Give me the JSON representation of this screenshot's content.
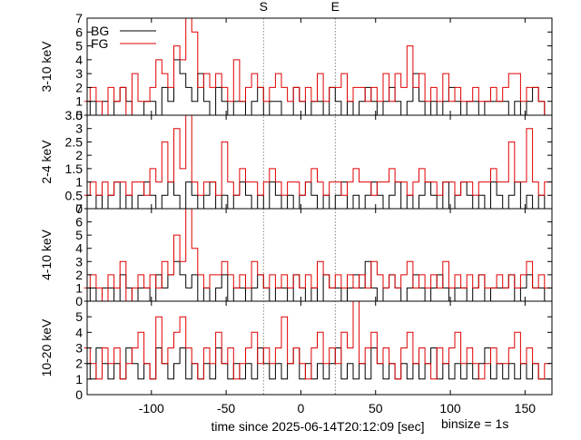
{
  "chart_data": {
    "type": "line",
    "xlabel": "time since 2025-06-14T20:12:09 [sec]",
    "binsize_label": "binsize = 1s",
    "xlim": [
      -143,
      168
    ],
    "xticks": [
      -100,
      -50,
      0,
      50,
      100,
      150
    ],
    "markers": [
      {
        "label": "S",
        "x": -25
      },
      {
        "label": "E",
        "x": 23
      }
    ],
    "legend": {
      "placement": "top-left",
      "entries": [
        {
          "label": "BG",
          "color": "#000000"
        },
        {
          "label": "FG",
          "color": "#e00000"
        }
      ]
    },
    "x": [
      -143,
      -139,
      -135,
      -131,
      -127,
      -123,
      -119,
      -115,
      -111,
      -107,
      -103,
      -99,
      -95,
      -91,
      -87,
      -83,
      -79,
      -75,
      -71,
      -67,
      -63,
      -59,
      -55,
      -51,
      -47,
      -43,
      -39,
      -35,
      -31,
      -27,
      -23,
      -19,
      -15,
      -11,
      -7,
      -3,
      1,
      5,
      9,
      13,
      17,
      21,
      25,
      29,
      33,
      37,
      41,
      45,
      49,
      53,
      57,
      61,
      65,
      69,
      73,
      77,
      81,
      85,
      89,
      93,
      97,
      101,
      105,
      109,
      113,
      117,
      121,
      125,
      129,
      133,
      137,
      141,
      145,
      149,
      153,
      157,
      161,
      165
    ],
    "panels": [
      {
        "ylabel": "3-10 keV",
        "ylim": [
          0,
          7
        ],
        "yticks": [
          0,
          1,
          2,
          3,
          4,
          5,
          6,
          7
        ],
        "series": [
          {
            "name": "BG",
            "color": "#000000",
            "values": [
              0,
              1,
              0,
              1,
              0,
              1,
              2,
              1,
              0,
              0,
              1,
              1,
              0,
              2,
              1,
              4,
              3,
              2,
              1,
              3,
              1,
              0,
              2,
              1,
              0,
              1,
              1,
              0,
              1,
              2,
              0,
              1,
              1,
              0,
              0,
              2,
              1,
              0,
              1,
              1,
              0,
              2,
              1,
              0,
              1,
              0,
              1,
              2,
              1,
              0,
              1,
              2,
              1,
              0,
              1,
              3,
              1,
              0,
              1,
              0,
              1,
              2,
              1,
              0,
              1,
              1,
              0,
              1,
              1,
              1,
              1,
              0,
              1,
              0,
              1,
              2,
              1,
              0
            ]
          },
          {
            "name": "FG",
            "color": "#e00000",
            "values": [
              1,
              2,
              1,
              0,
              2,
              1,
              2,
              0,
              3,
              1,
              1,
              2,
              4,
              3,
              2,
              5,
              4,
              7,
              6,
              2,
              3,
              2,
              3,
              2,
              1,
              4,
              1,
              2,
              3,
              2,
              1,
              2,
              3,
              2,
              1,
              2,
              1,
              2,
              1,
              3,
              1,
              2,
              2,
              3,
              1,
              2,
              2,
              1,
              2,
              1,
              3,
              1,
              3,
              2,
              5,
              2,
              3,
              1,
              2,
              1,
              3,
              1,
              2,
              1,
              1,
              2,
              1,
              1,
              2,
              1,
              2,
              3,
              3,
              1,
              2,
              2,
              1,
              0
            ]
          }
        ]
      },
      {
        "ylabel": "2-4 keV",
        "ylim": [
          0,
          3.5
        ],
        "yticks": [
          0,
          0.5,
          1,
          1.5,
          2,
          2.5,
          3,
          3.5
        ],
        "series": [
          {
            "name": "BG",
            "color": "#000000",
            "values": [
              0,
              0,
              0.5,
              0,
              0.5,
              1,
              0,
              0.5,
              0,
              0.5,
              1,
              0.5,
              0,
              0.5,
              1,
              0.5,
              0,
              1,
              0.5,
              0,
              0.5,
              1,
              0,
              0.5,
              0,
              0.5,
              1,
              0.5,
              0,
              0.5,
              0,
              1,
              0.5,
              0,
              0.5,
              0,
              0.5,
              1,
              0.5,
              0,
              0.5,
              0,
              0.5,
              1,
              0,
              0.5,
              0,
              0.5,
              1,
              0.5,
              0,
              0.5,
              1,
              0,
              0.5,
              0,
              0.5,
              1,
              0.5,
              0,
              1,
              0,
              0.5,
              1,
              0.5,
              0,
              0.5,
              0,
              1,
              0.5,
              0,
              0.5,
              1,
              0,
              0.5,
              0,
              0.5,
              0
            ]
          },
          {
            "name": "FG",
            "color": "#e00000",
            "values": [
              0.5,
              1,
              0.5,
              1,
              0.5,
              1,
              1,
              0.5,
              1,
              1,
              0.5,
              1.5,
              1,
              2.5,
              1,
              3,
              1.5,
              3.5,
              1,
              0.5,
              1,
              1,
              0.5,
              2.5,
              1,
              0.5,
              1.5,
              1,
              1,
              0.5,
              1,
              1.5,
              1,
              0.5,
              1,
              1,
              0.5,
              1,
              1.5,
              1,
              0.5,
              1,
              1,
              0.5,
              1,
              1.5,
              1,
              1,
              0.5,
              1,
              1,
              1.5,
              1,
              1,
              0.5,
              1,
              1.5,
              1,
              1,
              0.5,
              1,
              1,
              0.5,
              1,
              1,
              0.5,
              1,
              1,
              1.5,
              1,
              1,
              2.5,
              1,
              1,
              3,
              1,
              0.5,
              1
            ]
          }
        ]
      },
      {
        "ylabel": "4-10 keV",
        "ylim": [
          0,
          7
        ],
        "yticks": [
          0,
          1,
          2,
          3,
          4,
          5,
          6,
          7
        ],
        "series": [
          {
            "name": "BG",
            "color": "#000000",
            "values": [
              0,
              1,
              0,
              1,
              1,
              0,
              2,
              1,
              0,
              1,
              1,
              0,
              2,
              1,
              2,
              3,
              2,
              1,
              2,
              0,
              1,
              0,
              1,
              2,
              0,
              1,
              1,
              0,
              1,
              2,
              1,
              0,
              1,
              1,
              0,
              2,
              1,
              0,
              1,
              0,
              2,
              1,
              1,
              0,
              1,
              2,
              1,
              3,
              1,
              0,
              1,
              2,
              1,
              0,
              1,
              2,
              1,
              0,
              1,
              2,
              1,
              0,
              1,
              1,
              0,
              1,
              2,
              0,
              1,
              1,
              1,
              2,
              0,
              1,
              2,
              1,
              1,
              0
            ]
          },
          {
            "name": "FG",
            "color": "#e00000",
            "values": [
              1,
              2,
              1,
              0,
              2,
              1,
              3,
              0,
              1,
              2,
              1,
              2,
              1,
              3,
              2,
              5,
              3,
              7,
              4,
              2,
              1,
              2,
              2,
              3,
              2,
              1,
              2,
              1,
              3,
              2,
              1,
              2,
              1,
              2,
              1,
              2,
              1,
              2,
              1,
              3,
              2,
              1,
              2,
              1,
              2,
              1,
              2,
              1,
              3,
              2,
              1,
              2,
              1,
              2,
              3,
              1,
              2,
              1,
              2,
              1,
              3,
              1,
              2,
              1,
              2,
              1,
              2,
              1,
              1,
              2,
              1,
              2,
              1,
              2,
              3,
              1,
              2,
              1
            ]
          }
        ]
      },
      {
        "ylabel": "10-20 keV",
        "ylim": [
          0,
          6
        ],
        "yticks": [
          0,
          1,
          2,
          3,
          4,
          5
        ],
        "series": [
          {
            "name": "BG",
            "color": "#000000",
            "values": [
              2,
              1,
              3,
              2,
              1,
              2,
              1,
              3,
              2,
              1,
              2,
              1,
              3,
              2,
              1,
              2,
              3,
              1,
              2,
              1,
              2,
              1,
              3,
              2,
              1,
              2,
              1,
              2,
              1,
              3,
              2,
              1,
              2,
              1,
              2,
              3,
              1,
              2,
              1,
              2,
              1,
              2,
              3,
              1,
              2,
              1,
              2,
              1,
              3,
              2,
              1,
              2,
              1,
              2,
              1,
              2,
              1,
              2,
              3,
              1,
              2,
              1,
              2,
              1,
              2,
              1,
              2,
              3,
              1,
              2,
              1,
              2,
              1,
              2,
              1,
              2,
              1,
              1
            ]
          },
          {
            "name": "FG",
            "color": "#e00000",
            "values": [
              3,
              2,
              1,
              3,
              2,
              3,
              1,
              2,
              3,
              4,
              2,
              1,
              5,
              2,
              3,
              4,
              5,
              3,
              2,
              1,
              3,
              2,
              4,
              2,
              3,
              1,
              2,
              3,
              4,
              2,
              3,
              2,
              3,
              5,
              2,
              3,
              2,
              1,
              3,
              4,
              2,
              3,
              2,
              4,
              3,
              6,
              2,
              3,
              4,
              2,
              3,
              2,
              1,
              3,
              4,
              2,
              3,
              2,
              1,
              3,
              2,
              3,
              4,
              2,
              3,
              2,
              1,
              2,
              3,
              2,
              2,
              3,
              4,
              2,
              3,
              2,
              1,
              2
            ]
          }
        ]
      }
    ]
  }
}
